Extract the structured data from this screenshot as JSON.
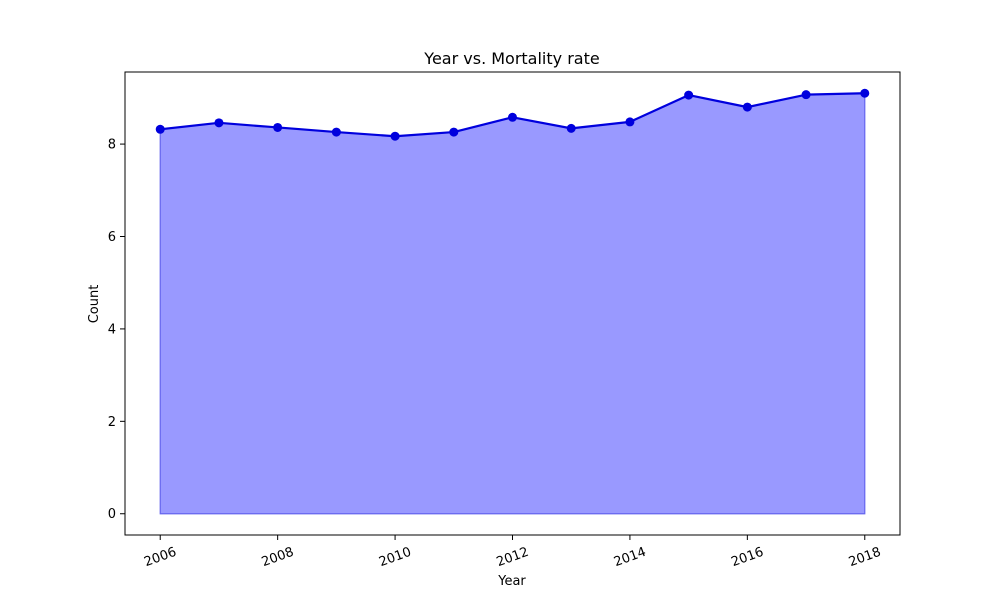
{
  "chart_data": {
    "type": "area",
    "title": "Year vs. Mortality rate",
    "xlabel": "Year",
    "ylabel": "Count",
    "x": [
      2006,
      2007,
      2008,
      2009,
      2010,
      2011,
      2012,
      2013,
      2014,
      2015,
      2016,
      2017,
      2018
    ],
    "series": [
      {
        "values": [
          8.32,
          8.46,
          8.36,
          8.26,
          8.17,
          8.26,
          8.58,
          8.34,
          8.48,
          9.06,
          8.8,
          9.07,
          9.1
        ],
        "line_color": "#0000dd",
        "fill_color": "#9999ff"
      }
    ],
    "xlim": [
      2005.4,
      2018.6
    ],
    "ylim": [
      -0.46,
      9.56
    ],
    "xticks": [
      "2006",
      "2008",
      "2010",
      "2012",
      "2014",
      "2016",
      "2018"
    ],
    "yticks": [
      "0",
      "2",
      "4",
      "6",
      "8"
    ],
    "grid": false,
    "legend": "none"
  }
}
